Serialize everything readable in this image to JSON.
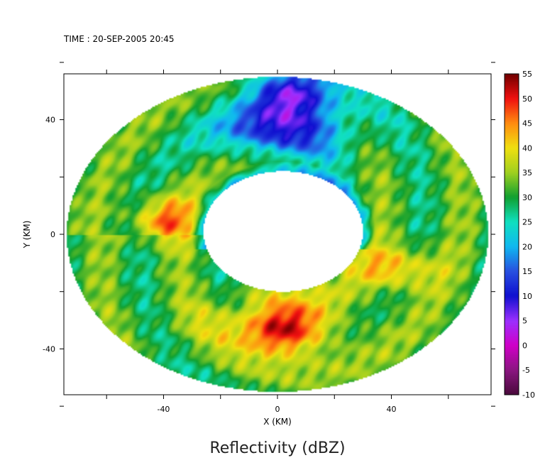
{
  "chart_data": {
    "type": "heatmap",
    "title": "Reflectivity (dBZ)",
    "time_label": "TIME : 20-SEP-2005 20:45",
    "xlabel": "X (KM)",
    "ylabel": "Y (KM)",
    "xlim": [
      -75,
      75
    ],
    "ylim": [
      -56,
      56
    ],
    "x_ticks": [
      -40,
      0,
      40
    ],
    "y_ticks": [
      -40,
      0,
      40
    ],
    "x_minor_ticks": [
      -60,
      -20,
      20,
      60
    ],
    "y_minor_ticks": [
      -60,
      -20,
      20,
      60
    ],
    "colorbar": {
      "min": -10,
      "max": 55,
      "tick_labels": [
        "55",
        "50",
        "45",
        "40",
        "35",
        "30",
        "25",
        "20",
        "15",
        "10",
        "5",
        "0",
        "-5",
        "-10"
      ],
      "stops": [
        {
          "v": -10,
          "color": "#4a0a3a"
        },
        {
          "v": -5,
          "color": "#8a1680"
        },
        {
          "v": 0,
          "color": "#d000c8"
        },
        {
          "v": 5,
          "color": "#9b30ff"
        },
        {
          "v": 10,
          "color": "#1010d0"
        },
        {
          "v": 15,
          "color": "#2850e0"
        },
        {
          "v": 20,
          "color": "#10b8f0"
        },
        {
          "v": 25,
          "color": "#10e0c0"
        },
        {
          "v": 30,
          "color": "#10a030"
        },
        {
          "v": 35,
          "color": "#a0d020"
        },
        {
          "v": 40,
          "color": "#f0e010"
        },
        {
          "v": 45,
          "color": "#ff8c10"
        },
        {
          "v": 50,
          "color": "#f01010"
        },
        {
          "v": 55,
          "color": "#700000"
        }
      ]
    },
    "data_domain": {
      "shape": "ellipse",
      "center": [
        0,
        0
      ],
      "radius_x": 74,
      "radius_y": 55
    },
    "echo_free_eye": {
      "center": [
        2,
        1
      ],
      "radius_x": 28,
      "radius_y": 21
    },
    "features": [
      {
        "name": "eyewall-max",
        "center": [
          2,
          -34
        ],
        "value": 50
      },
      {
        "name": "northwest-band",
        "center": [
          -38,
          5
        ],
        "value": 45
      },
      {
        "name": "east-band",
        "center": [
          42,
          -12
        ],
        "value": 45
      },
      {
        "name": "northern-weak-echo",
        "center": [
          5,
          50
        ],
        "value": 10
      }
    ]
  }
}
